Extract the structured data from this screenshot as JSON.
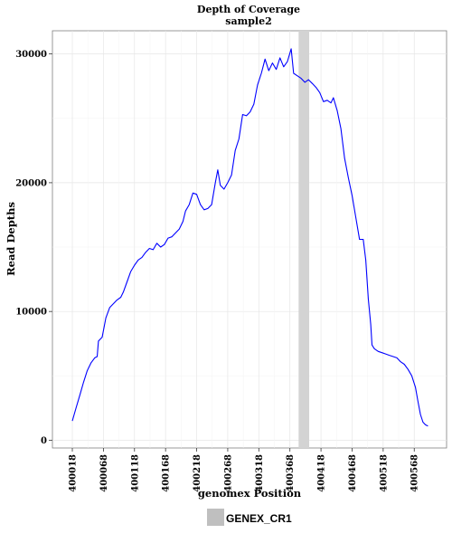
{
  "chart_data": {
    "type": "line",
    "title": "Depth of Coverage",
    "subtitle": "sample2",
    "xlabel": "genomex Position",
    "ylabel": "Read Depths",
    "xlim": [
      399986,
      400620
    ],
    "ylim": [
      -600,
      31800
    ],
    "x_ticks": [
      400018,
      400068,
      400118,
      400168,
      400218,
      400268,
      400318,
      400368,
      400418,
      400468,
      400518,
      400568
    ],
    "x_tick_labels": [
      "400018",
      "400068",
      "400118",
      "400168",
      "400218",
      "400268",
      "400318",
      "400368",
      "400418",
      "400468",
      "400518",
      "400568"
    ],
    "y_ticks": [
      0,
      10000,
      20000,
      30000
    ],
    "y_tick_labels": [
      "0",
      "10000",
      "20000",
      "30000"
    ],
    "grid": true,
    "legend_placement": "bottom",
    "legend": [
      {
        "label": "GENEX_CR1",
        "color": "#bfbfbf"
      }
    ],
    "region": {
      "name": "GENEX_CR1",
      "x_start": 400382,
      "x_end": 400399,
      "color": "#d3d3d3"
    },
    "series": [
      {
        "color": "#0000ff",
        "points": [
          [
            400018,
            1500
          ],
          [
            400024,
            2500
          ],
          [
            400030,
            3500
          ],
          [
            400036,
            4500
          ],
          [
            400042,
            5400
          ],
          [
            400048,
            6000
          ],
          [
            400054,
            6400
          ],
          [
            400058,
            6500
          ],
          [
            400060,
            7700
          ],
          [
            400066,
            8000
          ],
          [
            400072,
            9500
          ],
          [
            400078,
            10300
          ],
          [
            400084,
            10600
          ],
          [
            400090,
            10900
          ],
          [
            400096,
            11100
          ],
          [
            400100,
            11500
          ],
          [
            400106,
            12300
          ],
          [
            400112,
            13100
          ],
          [
            400118,
            13600
          ],
          [
            400124,
            14000
          ],
          [
            400130,
            14200
          ],
          [
            400136,
            14600
          ],
          [
            400142,
            14900
          ],
          [
            400148,
            14800
          ],
          [
            400154,
            15300
          ],
          [
            400160,
            15000
          ],
          [
            400166,
            15200
          ],
          [
            400172,
            15700
          ],
          [
            400178,
            15800
          ],
          [
            400184,
            16100
          ],
          [
            400190,
            16400
          ],
          [
            400196,
            17000
          ],
          [
            400200,
            17800
          ],
          [
            400206,
            18300
          ],
          [
            400212,
            19200
          ],
          [
            400218,
            19100
          ],
          [
            400224,
            18300
          ],
          [
            400230,
            17900
          ],
          [
            400236,
            18000
          ],
          [
            400242,
            18300
          ],
          [
            400248,
            20000
          ],
          [
            400252,
            21000
          ],
          [
            400256,
            19800
          ],
          [
            400262,
            19500
          ],
          [
            400268,
            20000
          ],
          [
            400274,
            20600
          ],
          [
            400280,
            22500
          ],
          [
            400286,
            23400
          ],
          [
            400292,
            25300
          ],
          [
            400298,
            25200
          ],
          [
            400304,
            25500
          ],
          [
            400310,
            26100
          ],
          [
            400316,
            27600
          ],
          [
            400322,
            28500
          ],
          [
            400328,
            29600
          ],
          [
            400334,
            28700
          ],
          [
            400340,
            29300
          ],
          [
            400346,
            28800
          ],
          [
            400352,
            29700
          ],
          [
            400358,
            29000
          ],
          [
            400364,
            29400
          ],
          [
            400370,
            30400
          ],
          [
            400374,
            28500
          ],
          [
            400380,
            28300
          ],
          [
            400386,
            28100
          ],
          [
            400392,
            27800
          ],
          [
            400398,
            28000
          ],
          [
            400404,
            27700
          ],
          [
            400410,
            27400
          ],
          [
            400416,
            27000
          ],
          [
            400422,
            26300
          ],
          [
            400428,
            26400
          ],
          [
            400434,
            26200
          ],
          [
            400438,
            26600
          ],
          [
            400444,
            25600
          ],
          [
            400450,
            24200
          ],
          [
            400456,
            21900
          ],
          [
            400462,
            20400
          ],
          [
            400468,
            19000
          ],
          [
            400474,
            17300
          ],
          [
            400480,
            15600
          ],
          [
            400486,
            15600
          ],
          [
            400490,
            14000
          ],
          [
            400494,
            11000
          ],
          [
            400498,
            9000
          ],
          [
            400500,
            7400
          ],
          [
            400504,
            7100
          ],
          [
            400510,
            6900
          ],
          [
            400516,
            6800
          ],
          [
            400522,
            6700
          ],
          [
            400528,
            6600
          ],
          [
            400534,
            6500
          ],
          [
            400540,
            6400
          ],
          [
            400546,
            6100
          ],
          [
            400552,
            5900
          ],
          [
            400558,
            5500
          ],
          [
            400564,
            5000
          ],
          [
            400570,
            4100
          ],
          [
            400574,
            3000
          ],
          [
            400578,
            2000
          ],
          [
            400582,
            1400
          ],
          [
            400586,
            1200
          ],
          [
            400590,
            1100
          ]
        ]
      }
    ]
  }
}
